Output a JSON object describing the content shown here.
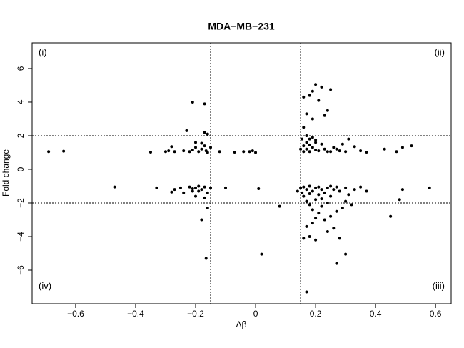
{
  "chart_data": {
    "type": "scatter",
    "title": "MDA−MB−231",
    "x_label": "Δβ",
    "y_label": "Fold change",
    "annotations": [
      "(i)",
      "(ii)",
      "(iii)",
      "(iv)"
    ],
    "color": "#000000",
    "xlim": [
      -0.745,
      0.652
    ],
    "ylim": [
      -8.0,
      7.53
    ],
    "xticks": [
      {
        "value": -0.6,
        "label": "−0.6"
      },
      {
        "value": -0.4,
        "label": "−0.4"
      },
      {
        "value": -0.2,
        "label": "−0.2"
      },
      0,
      0.2,
      0.4,
      0.6
    ],
    "yticks": [
      {
        "value": -6,
        "label": "−6"
      },
      {
        "value": -4,
        "label": "−4"
      },
      {
        "value": -2,
        "label": "−2"
      },
      0,
      2,
      4,
      6
    ],
    "vlines": [
      -0.15,
      0.15
    ],
    "hlines": [
      -2,
      2
    ],
    "x": [
      -0.69,
      -0.64,
      -0.35,
      -0.3,
      -0.29,
      -0.28,
      -0.27,
      -0.24,
      -0.23,
      -0.21,
      -0.17,
      -0.2,
      -0.17,
      -0.16,
      -0.2,
      -0.19,
      -0.18,
      -0.17,
      -0.16,
      -0.15,
      -0.21,
      -0.22,
      -0.18,
      -0.165,
      -0.12,
      -0.07,
      -0.04,
      -0.01,
      0.0,
      -0.02,
      0.16,
      0.17,
      0.18,
      0.19,
      0.2,
      0.22,
      0.25,
      0.21,
      0.23,
      0.24,
      0.19,
      0.16,
      0.17,
      0.18,
      0.2,
      0.22,
      0.16,
      0.17,
      0.18,
      0.19,
      0.21,
      0.23,
      0.24,
      0.26,
      0.28,
      0.3,
      0.31,
      0.33,
      0.35,
      0.37,
      0.43,
      0.47,
      0.49,
      0.52,
      0.16,
      0.17,
      0.19,
      0.2,
      0.25,
      0.27,
      0.29,
      0.18,
      0.2,
      0.15,
      0.155,
      -0.47,
      -0.33,
      -0.28,
      -0.27,
      -0.25,
      -0.24,
      -0.22,
      -0.21,
      -0.2,
      -0.19,
      -0.18,
      -0.17,
      -0.16,
      -0.15,
      -0.2,
      -0.18,
      -0.165,
      -0.16,
      -0.17,
      -0.1,
      -0.21,
      -0.19,
      0.01,
      0.02,
      0.08,
      0.14,
      0.15,
      0.16,
      0.17,
      0.18,
      0.19,
      0.2,
      0.21,
      0.22,
      0.23,
      0.24,
      0.25,
      0.26,
      0.27,
      0.28,
      0.3,
      0.31,
      0.33,
      0.35,
      0.37,
      0.16,
      0.17,
      0.18,
      0.19,
      0.2,
      0.21,
      0.22,
      0.23,
      0.24,
      0.25,
      0.26,
      0.27,
      0.29,
      0.3,
      0.32,
      0.17,
      0.18,
      0.2,
      0.24,
      0.16,
      0.19,
      0.28,
      0.27,
      0.3,
      0.17,
      0.45,
      0.48,
      0.49,
      0.58,
      0.155,
      0.21,
      0.25,
      0.22,
      0.18,
      0.2
    ],
    "values": [
      1.05,
      1.08,
      1.02,
      1.05,
      1.1,
      1.35,
      1.05,
      1.1,
      2.3,
      4.0,
      3.9,
      1.6,
      2.2,
      2.1,
      1.3,
      1.05,
      1.2,
      1.4,
      1.0,
      1.3,
      1.15,
      1.05,
      1.55,
      1.1,
      1.05,
      1.02,
      1.05,
      1.1,
      1.0,
      1.05,
      4.3,
      3.3,
      4.4,
      4.65,
      5.05,
      4.9,
      4.75,
      4.1,
      3.2,
      3.5,
      3.0,
      2.5,
      2.0,
      1.8,
      1.6,
      1.5,
      1.4,
      1.2,
      1.05,
      1.3,
      1.1,
      1.2,
      1.05,
      1.3,
      1.1,
      1.05,
      1.8,
      1.35,
      1.1,
      1.02,
      1.2,
      1.05,
      1.3,
      1.4,
      1.05,
      1.6,
      1.9,
      1.15,
      1.05,
      1.2,
      1.5,
      1.45,
      1.75,
      1.2,
      1.8,
      -1.05,
      -1.1,
      -1.35,
      -1.2,
      -1.1,
      -1.4,
      -1.05,
      -1.3,
      -1.1,
      -1.0,
      -1.2,
      -1.05,
      -1.4,
      -1.1,
      -1.6,
      -3.0,
      -5.3,
      -2.3,
      -1.7,
      -1.1,
      -1.15,
      -1.3,
      -1.15,
      -5.05,
      -2.2,
      -1.3,
      -1.1,
      -1.05,
      -1.2,
      -1.0,
      -1.3,
      -1.1,
      -1.05,
      -1.2,
      -1.4,
      -1.1,
      -1.0,
      -1.2,
      -1.05,
      -1.3,
      -1.1,
      -1.5,
      -1.2,
      -1.05,
      -1.3,
      -1.6,
      -1.9,
      -2.1,
      -2.4,
      -1.8,
      -2.6,
      -2.2,
      -3.0,
      -2.0,
      -2.8,
      -3.5,
      -2.5,
      -2.3,
      -1.9,
      -2.1,
      -3.4,
      -4.0,
      -4.2,
      -3.7,
      -4.1,
      -3.2,
      -4.1,
      -5.6,
      -5.05,
      -7.3,
      -2.8,
      -1.8,
      -1.2,
      -1.1,
      -1.4,
      -1.5,
      -1.6,
      -1.75,
      -1.45,
      -2.9
    ]
  }
}
